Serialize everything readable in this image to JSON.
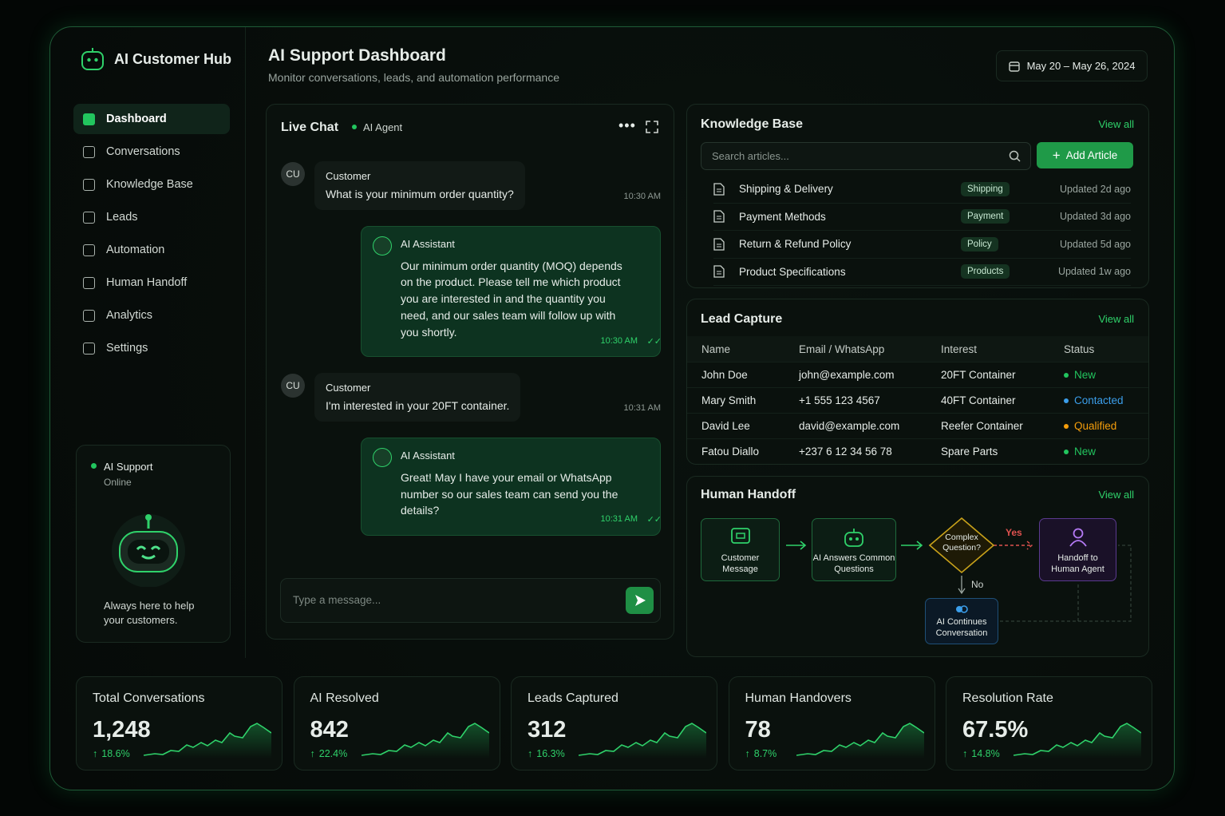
{
  "sidebar": {
    "brand": "AI Customer Hub",
    "nav": [
      "Dashboard",
      "Conversations",
      "Knowledge Base",
      "Leads",
      "Automation",
      "Human Handoff",
      "Analytics",
      "Settings"
    ],
    "status": {
      "name": "AI Support",
      "state": "Online",
      "tagline": "Always here to help your customers."
    }
  },
  "header": {
    "title": "AI Support Dashboard",
    "subtitle": "Monitor conversations, leads, and automation performance",
    "date_range": "May 20 – May 26, 2024"
  },
  "live_chat": {
    "title": "Live Chat",
    "agent": "AI Agent",
    "messages": [
      {
        "avatar": "CU",
        "sender": "Customer",
        "text": "What is your minimum order quantity?",
        "time": "10:30 AM"
      },
      {
        "sender": "AI Assistant",
        "text": "Our minimum order quantity (MOQ) depends on the product. Please tell me which product you are interested in and the quantity you need, and our sales team will follow up with you shortly.",
        "time": "10:30 AM"
      },
      {
        "avatar": "CU",
        "sender": "Customer",
        "text": "I'm interested in your 20FT container.",
        "time": "10:31 AM"
      },
      {
        "sender": "AI Assistant",
        "text": "Great! May I have your email or WhatsApp number so our sales team can send you the details?",
        "time": "10:31 AM"
      }
    ],
    "input_placeholder": "Type a message..."
  },
  "knowledge_base": {
    "title": "Knowledge Base",
    "view_all": "View all",
    "search_placeholder": "Search articles...",
    "add_button": "Add Article",
    "articles": [
      {
        "title": "Shipping & Delivery",
        "tag": "Shipping",
        "updated": "Updated 2d ago"
      },
      {
        "title": "Payment Methods",
        "tag": "Payment",
        "updated": "Updated 3d ago"
      },
      {
        "title": "Return & Refund Policy",
        "tag": "Policy",
        "updated": "Updated 5d ago"
      },
      {
        "title": "Product Specifications",
        "tag": "Products",
        "updated": "Updated 1w ago"
      }
    ]
  },
  "lead_capture": {
    "title": "Lead Capture",
    "view_all": "View all",
    "columns": [
      "Name",
      "Email / WhatsApp",
      "Interest",
      "Status"
    ],
    "rows": [
      {
        "name": "John Doe",
        "contact": "john@example.com",
        "interest": "20FT Container",
        "status": "New",
        "status_color": "#22c55e"
      },
      {
        "name": "Mary Smith",
        "contact": "+1 555 123 4567",
        "interest": "40FT Container",
        "status": "Contacted",
        "status_color": "#3b9eea"
      },
      {
        "name": "David Lee",
        "contact": "david@example.com",
        "interest": "Reefer Container",
        "status": "Qualified",
        "status_color": "#f59e0b"
      },
      {
        "name": "Fatou Diallo",
        "contact": "+237 6 12 34 56 78",
        "interest": "Spare Parts",
        "status": "New",
        "status_color": "#22c55e"
      }
    ]
  },
  "human_handoff": {
    "title": "Human Handoff",
    "view_all": "View all",
    "nodes": [
      "Customer Message",
      "AI Answers Common Questions",
      "Complex Question?",
      "Handoff to Human Agent",
      "AI Continues Conversation"
    ],
    "yes": "Yes",
    "no": "No"
  },
  "stats": [
    {
      "label": "Total Conversations",
      "value": "1,248",
      "change": "18.6%"
    },
    {
      "label": "AI Resolved",
      "value": "842",
      "change": "22.4%"
    },
    {
      "label": "Leads Captured",
      "value": "312",
      "change": "16.3%"
    },
    {
      "label": "Human Handovers",
      "value": "78",
      "change": "8.7%"
    },
    {
      "label": "Resolution Rate",
      "value": "67.5%",
      "change": "14.8%"
    }
  ]
}
